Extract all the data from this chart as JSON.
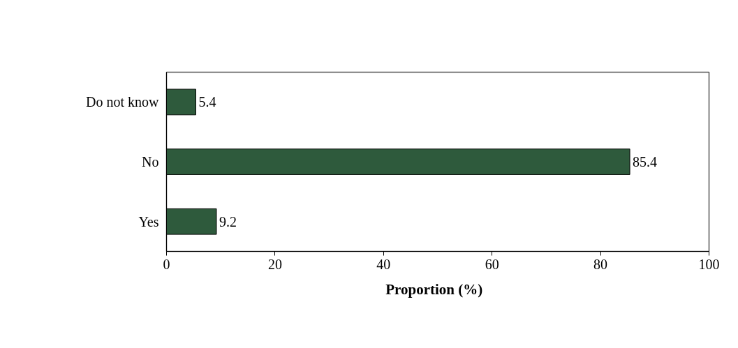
{
  "chart_data": {
    "type": "bar",
    "orientation": "horizontal",
    "categories": [
      "Do not know",
      "No",
      "Yes"
    ],
    "values": [
      5.4,
      85.4,
      9.2
    ],
    "color": "#2e5a3c",
    "xlim": [
      0,
      100
    ],
    "xticks": [
      0,
      20,
      40,
      60,
      80,
      100
    ],
    "xlabel": "Proportion   (%)",
    "data_labels": true,
    "grid": false
  }
}
